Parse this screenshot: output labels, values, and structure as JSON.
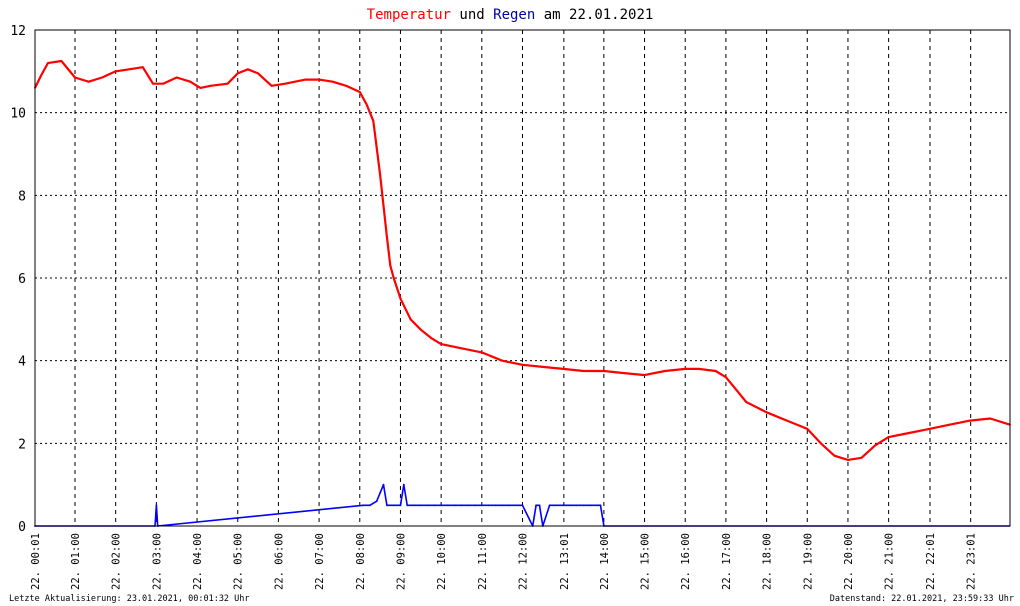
{
  "title": {
    "part1": "Temperatur",
    "part2": "und",
    "part3": "Regen",
    "part4": "am",
    "part5": "22.01.2021"
  },
  "footer": {
    "left": "Letzte Aktualisierung: 23.01.2021, 00:01:32 Uhr",
    "right": "Datenstand: 22.01.2021, 23:59:33 Uhr"
  },
  "colors": {
    "temperature": "#ff0000",
    "rain": "#0000ff",
    "title_text": "#000000",
    "grid": "#000000",
    "axis": "#000000"
  },
  "chart_data": {
    "type": "line",
    "title": "Temperatur und Regen am 22.01.2021",
    "x_range": [
      "22. 00:01",
      "22. 23:59"
    ],
    "ylim": [
      0,
      12
    ],
    "y_ticks": [
      "0",
      "2",
      "4",
      "6",
      "8",
      "10",
      "12"
    ],
    "x_ticks": [
      "22. 00:01",
      "22. 01:00",
      "22. 02:00",
      "22. 03:00",
      "22. 04:00",
      "22. 05:00",
      "22. 06:00",
      "22. 07:00",
      "22. 08:00",
      "22. 09:00",
      "22. 10:00",
      "22. 11:00",
      "22. 12:00",
      "22. 13:01",
      "22. 14:00",
      "22. 15:00",
      "22. 16:00",
      "22. 17:00",
      "22. 18:00",
      "22. 19:00",
      "22. 20:00",
      "22. 21:00",
      "22. 22:01",
      "22. 23:01"
    ],
    "grid": true,
    "series": [
      {
        "name": "Temperatur",
        "x": [
          "00:01",
          "00:10",
          "00:20",
          "00:40",
          "01:00",
          "01:20",
          "01:40",
          "02:00",
          "02:20",
          "02:40",
          "02:55",
          "03:10",
          "03:30",
          "03:50",
          "04:05",
          "04:20",
          "04:45",
          "05:00",
          "05:15",
          "05:30",
          "05:50",
          "06:10",
          "06:40",
          "07:00",
          "07:20",
          "07:40",
          "08:00",
          "08:10",
          "08:20",
          "08:30",
          "08:40",
          "08:45",
          "08:50",
          "09:00",
          "09:15",
          "09:30",
          "09:45",
          "10:00",
          "10:30",
          "11:00",
          "11:30",
          "12:00",
          "12:30",
          "13:00",
          "13:30",
          "14:00",
          "14:30",
          "15:00",
          "15:30",
          "16:00",
          "16:20",
          "16:45",
          "17:00",
          "17:15",
          "17:30",
          "18:00",
          "18:30",
          "19:00",
          "19:20",
          "19:40",
          "20:00",
          "20:20",
          "20:40",
          "21:00",
          "21:30",
          "22:00",
          "22:30",
          "23:00",
          "23:30",
          "23:59"
        ],
        "values": [
          10.6,
          10.9,
          11.2,
          11.25,
          10.85,
          10.75,
          10.85,
          11.0,
          11.05,
          11.1,
          10.7,
          10.7,
          10.85,
          10.75,
          10.6,
          10.65,
          10.7,
          10.95,
          11.05,
          10.95,
          10.65,
          10.7,
          10.8,
          10.8,
          10.75,
          10.65,
          10.5,
          10.2,
          9.8,
          8.5,
          7.0,
          6.3,
          6.0,
          5.5,
          5.0,
          4.75,
          4.55,
          4.4,
          4.3,
          4.2,
          4.0,
          3.9,
          3.85,
          3.8,
          3.75,
          3.75,
          3.7,
          3.65,
          3.75,
          3.8,
          3.8,
          3.75,
          3.6,
          3.3,
          3.0,
          2.75,
          2.55,
          2.35,
          2.0,
          1.7,
          1.6,
          1.65,
          1.95,
          2.15,
          2.25,
          2.35,
          2.45,
          2.55,
          2.6,
          2.45
        ]
      },
      {
        "name": "Regen",
        "x": [
          "00:01",
          "02:58",
          "03:00",
          "03:02",
          "08:05",
          "08:15",
          "08:25",
          "08:30",
          "08:35",
          "08:40",
          "08:50",
          "09:00",
          "09:05",
          "09:10",
          "09:20",
          "09:30",
          "09:40",
          "09:50",
          "10:00",
          "10:10",
          "10:20",
          "10:30",
          "10:40",
          "10:50",
          "11:00",
          "11:10",
          "11:20",
          "11:30",
          "11:40",
          "11:50",
          "12:00",
          "12:15",
          "12:20",
          "12:25",
          "12:30",
          "12:40",
          "12:50",
          "13:00",
          "13:05",
          "13:10",
          "13:20",
          "13:30",
          "13:40",
          "13:50",
          "13:55",
          "14:00"
        ],
        "values": [
          0,
          0,
          0.5,
          0,
          0.5,
          0.5,
          0.6,
          0.8,
          1.0,
          0.5,
          0.5,
          0.5,
          1.0,
          0.5,
          0.5,
          0.5,
          0.5,
          0.5,
          0.5,
          0.5,
          0.5,
          0.5,
          0.5,
          0.5,
          0.5,
          0.5,
          0.5,
          0.5,
          0.5,
          0.5,
          0.5,
          0,
          0.5,
          0.5,
          0,
          0.5,
          0.5,
          0.5,
          0.5,
          0.5,
          0.5,
          0.5,
          0.5,
          0.5,
          0.5,
          0
        ]
      }
    ]
  }
}
